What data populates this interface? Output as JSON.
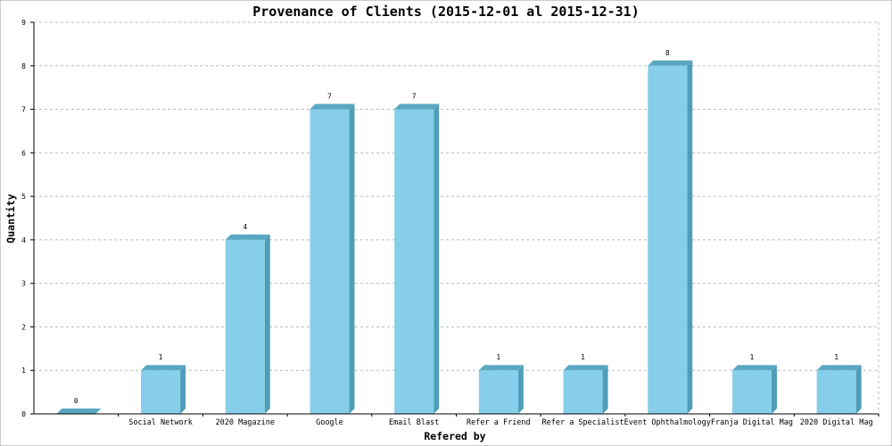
{
  "chart_data": {
    "type": "bar",
    "title": "Provenance of Clients (2015-12-01 al 2015-12-31)",
    "xlabel": "Refered by",
    "ylabel": "Quantity",
    "ylim": [
      0,
      9
    ],
    "yticks": [
      0,
      1,
      2,
      3,
      4,
      5,
      6,
      7,
      8,
      9
    ],
    "grid": true,
    "categories": [
      "",
      "Social Network",
      "2020 Magazine",
      "Google",
      "Email Blast",
      "Refer a Friend",
      "Refer a Specialist",
      "Event Ophthalmology",
      "Franja Digital Mag",
      "2020 Digital Mag"
    ],
    "values": [
      0,
      1,
      4,
      7,
      7,
      1,
      1,
      8,
      1,
      1
    ],
    "colors": {
      "bar_front": "#87ceeb",
      "bar_side": "#4f9eb8",
      "bar_top": "#5aa7c2",
      "grid": "#bbbbbb",
      "axis": "#000000",
      "background": "#ffffff"
    }
  }
}
